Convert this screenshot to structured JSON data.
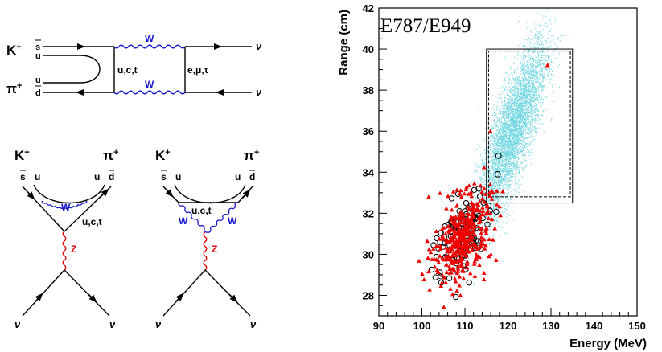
{
  "diagrams": {
    "box": {
      "k": "K",
      "k_sup": "+",
      "pi": "π",
      "pi_sup": "+",
      "q_sbar": "s",
      "q_u1": "u",
      "q_u2": "u",
      "q_dbar": "d",
      "w_top": "W",
      "w_bottom": "W",
      "internal_quarks": "u,c,t",
      "internal_leptons": "e,μ,τ",
      "nu_top": "ν",
      "nu_bottom": "ν"
    },
    "penguin1": {
      "k": "K",
      "k_sup": "+",
      "pi": "π",
      "pi_sup": "+",
      "q_sbar": "s",
      "q_u1": "u",
      "q_u2": "u",
      "q_dbar": "d",
      "w": "W",
      "internal_quarks": "u,c,t",
      "z": "Z",
      "nu_left": "ν",
      "nu_right": "ν"
    },
    "penguin2": {
      "k": "K",
      "k_sup": "+",
      "pi": "π",
      "pi_sup": "+",
      "q_sbar": "s",
      "q_u1": "u",
      "q_u2": "u",
      "q_dbar": "d",
      "w_left": "W",
      "w_right": "W",
      "internal_quarks": "u,c,t",
      "z": "Z",
      "nu_left": "ν",
      "nu_right": "ν"
    }
  },
  "colors": {
    "w_boson": "#1a1acc",
    "z_boson": "#e00000",
    "pnn_simulation": "#40c8d8",
    "data_triangles": "#ee0000",
    "circles": "#000000"
  },
  "chart_data": {
    "type": "scatter",
    "title": "E787/E949",
    "xlabel": "Energy (MeV)",
    "ylabel": "Range (cm)",
    "xlim": [
      90,
      150
    ],
    "ylim": [
      27,
      42
    ],
    "xticks": [
      "90",
      "100",
      "110",
      "120",
      "130",
      "140",
      "150"
    ],
    "yticks": [
      "28",
      "30",
      "32",
      "34",
      "36",
      "38",
      "40",
      "42"
    ],
    "signal_regions": [
      {
        "style": "solid",
        "x": [
          115,
          135
        ],
        "y": [
          32.5,
          40
        ]
      },
      {
        "style": "dashed",
        "x": [
          115.5,
          134.5
        ],
        "y": [
          32.8,
          39.9
        ]
      }
    ],
    "simulation_cloud": {
      "style": "cyan dots",
      "center": [
        121,
        36
      ],
      "spread": [
        4,
        2.2
      ]
    },
    "background_cloud": {
      "center": [
        109,
        30.8
      ],
      "spread": [
        3.2,
        1.1
      ]
    },
    "series": [
      {
        "marker": "open-circle",
        "points": [
          [
            117.8,
            34.8
          ],
          [
            117.6,
            33.9
          ]
        ]
      },
      {
        "marker": "filled-triangle",
        "points": [
          [
            129.2,
            39.2
          ]
        ]
      }
    ]
  }
}
